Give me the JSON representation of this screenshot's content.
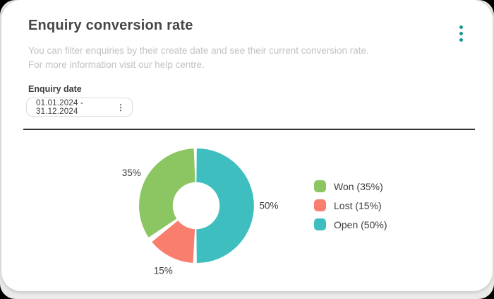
{
  "card": {
    "title": "Enquiry conversion rate",
    "description_line1": "You can filter enquiries by their create date and see their current conversion rate.",
    "description_line2": "For more information visit our help centre.",
    "menu_icon": "kebab-menu-icon",
    "accent_color": "#18988f"
  },
  "filter": {
    "label": "Enquiry date",
    "date_range_value": "01.01.2024 - 31.12.2024",
    "stepper_icon_glyph": "⋮"
  },
  "chart_data": {
    "type": "pie",
    "title": "Enquiry conversion rate",
    "donut": true,
    "direction": "clockwise",
    "start_angle_deg": 0,
    "inner_radius_ratio": 0.41,
    "slices": [
      {
        "label": "Open",
        "value": 50,
        "display": "50%",
        "color": "#3fbec0",
        "pad_deg": 0.6
      },
      {
        "label": "Lost",
        "value": 15,
        "display": "15%",
        "color": "#f97e6e",
        "pad_deg": 3.2
      },
      {
        "label": "Won",
        "value": 35,
        "display": "35%",
        "color": "#8bc663",
        "pad_deg": 2.4
      }
    ],
    "legend_position": "right",
    "legend": [
      {
        "label": "Won (35%)",
        "color": "#8bc663"
      },
      {
        "label": "Lost (15%)",
        "color": "#f97e6e"
      },
      {
        "label": "Open (50%)",
        "color": "#3fbec0"
      }
    ]
  }
}
